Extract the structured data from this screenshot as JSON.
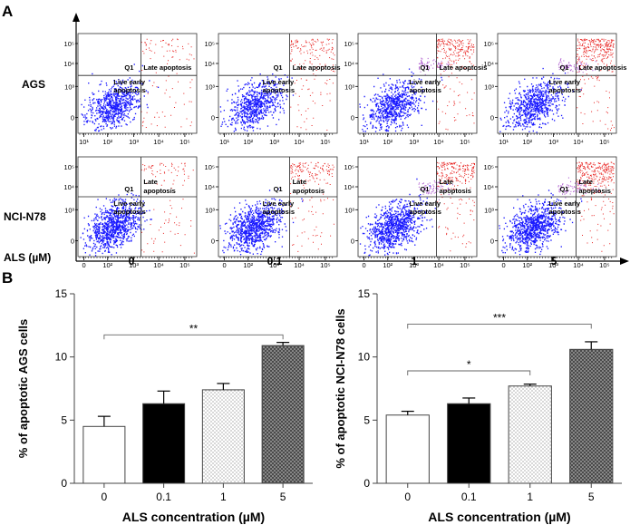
{
  "panels": {
    "a_label": "A",
    "b_label": "B"
  },
  "flow": {
    "rows": [
      "AGS",
      "NCI-N78"
    ],
    "x_axis_label": "ALS (µM)",
    "doses": [
      "0",
      "0.1",
      "1",
      "5"
    ],
    "quadrant_labels": {
      "q1": "Q1",
      "late": "Late apoptosis",
      "late_line1": "Late",
      "late_line2": "apoptosis",
      "live_line1": "Live early",
      "live_line2": "apoptosis"
    },
    "x_ticks": [
      "10¹",
      "10²",
      "10³",
      "10⁴",
      "10⁵"
    ],
    "x_ticks_row2": [
      "0",
      "10²",
      "10³",
      "10⁴",
      "10⁵"
    ],
    "y_ticks": [
      "10⁵",
      "10⁴",
      "10³",
      "0"
    ],
    "colors": {
      "live": "#1a1aff",
      "late": "#e8201e",
      "mid": "#b060d0"
    }
  },
  "chart_data": [
    {
      "type": "bar",
      "title": "",
      "categories": [
        "0",
        "0.1",
        "1",
        "5"
      ],
      "values": [
        4.5,
        6.3,
        7.4,
        10.9
      ],
      "errors": [
        0.8,
        1.0,
        0.5,
        0.25
      ],
      "fills": [
        "white",
        "black",
        "dots",
        "crosshatch"
      ],
      "xlabel": "ALS concentration (µM)",
      "ylabel": "% of apoptotic AGS cells",
      "ylim": [
        0,
        15
      ],
      "yticks": [
        "0",
        "5",
        "10",
        "15"
      ],
      "significance": [
        {
          "from": "0",
          "to": "5",
          "label": "**"
        }
      ]
    },
    {
      "type": "bar",
      "title": "",
      "categories": [
        "0",
        "0.1",
        "1",
        "5"
      ],
      "values": [
        5.4,
        6.3,
        7.7,
        10.6
      ],
      "errors": [
        0.3,
        0.45,
        0.15,
        0.6
      ],
      "fills": [
        "white",
        "black",
        "dots",
        "crosshatch"
      ],
      "xlabel": "ALS concentration (µM)",
      "ylabel": "% of apoptotic NCI-N78 cells",
      "ylim": [
        0,
        15
      ],
      "yticks": [
        "0",
        "5",
        "10",
        "15"
      ],
      "significance": [
        {
          "from": "0",
          "to": "5",
          "label": "***"
        },
        {
          "from": "0",
          "to": "1",
          "label": "*"
        }
      ]
    }
  ]
}
